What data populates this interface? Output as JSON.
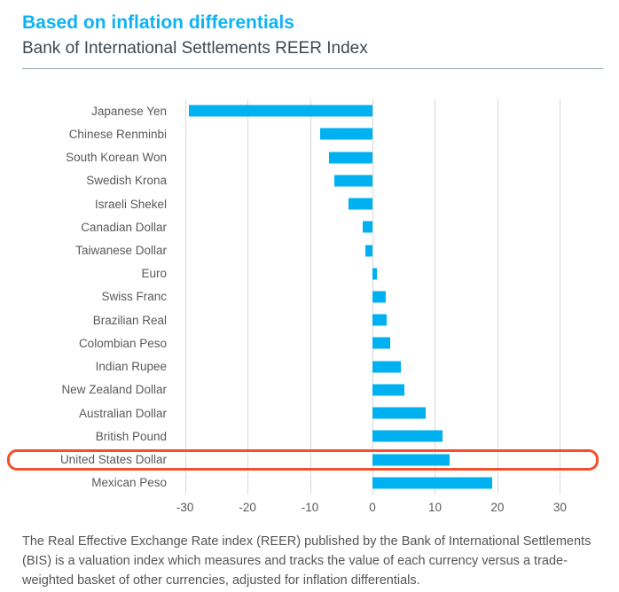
{
  "header": {
    "title": "Based on inflation differentials",
    "subtitle": "Bank of International Settlements REER Index"
  },
  "chart_data": {
    "type": "bar",
    "orientation": "horizontal",
    "title": "Based on inflation differentials",
    "subtitle": "Bank of International Settlements REER Index",
    "xlabel": "",
    "ylabel": "",
    "categories": [
      "Japanese Yen",
      "Chinese Renminbi",
      "South Korean Won",
      "Swedish Krona",
      "Israeli Shekel",
      "Canadian Dollar",
      "Taiwanese Dollar",
      "Euro",
      "Swiss Franc",
      "Brazilian Real",
      "Colombian Peso",
      "Indian Rupee",
      "New Zealand Dollar",
      "Australian Dollar",
      "British Pound",
      "United States Dollar",
      "Mexican Peso"
    ],
    "values": [
      -29.4,
      -8.4,
      -7.0,
      -6.1,
      -3.9,
      -1.6,
      -1.1,
      0.7,
      2.1,
      2.3,
      2.9,
      4.6,
      5.1,
      8.5,
      11.2,
      12.4,
      19.1
    ],
    "x_ticks": [
      -30,
      -20,
      -10,
      0,
      10,
      20,
      30
    ],
    "xlim": [
      -31.8,
      35.2
    ],
    "grid": true,
    "legend": false,
    "bar_color": "#00b1f2",
    "gridline_color": "#d9d9d9",
    "highlighted_category": "United States Dollar",
    "highlight_box_color": "#f4502c"
  },
  "footnote": "The Real Effective Exchange Rate index (REER) published by the Bank of International Settlements (BIS) is a valuation index which measures and tracks the value of each currency versus a trade-weighted basket of other currencies, adjusted for inflation differentials."
}
